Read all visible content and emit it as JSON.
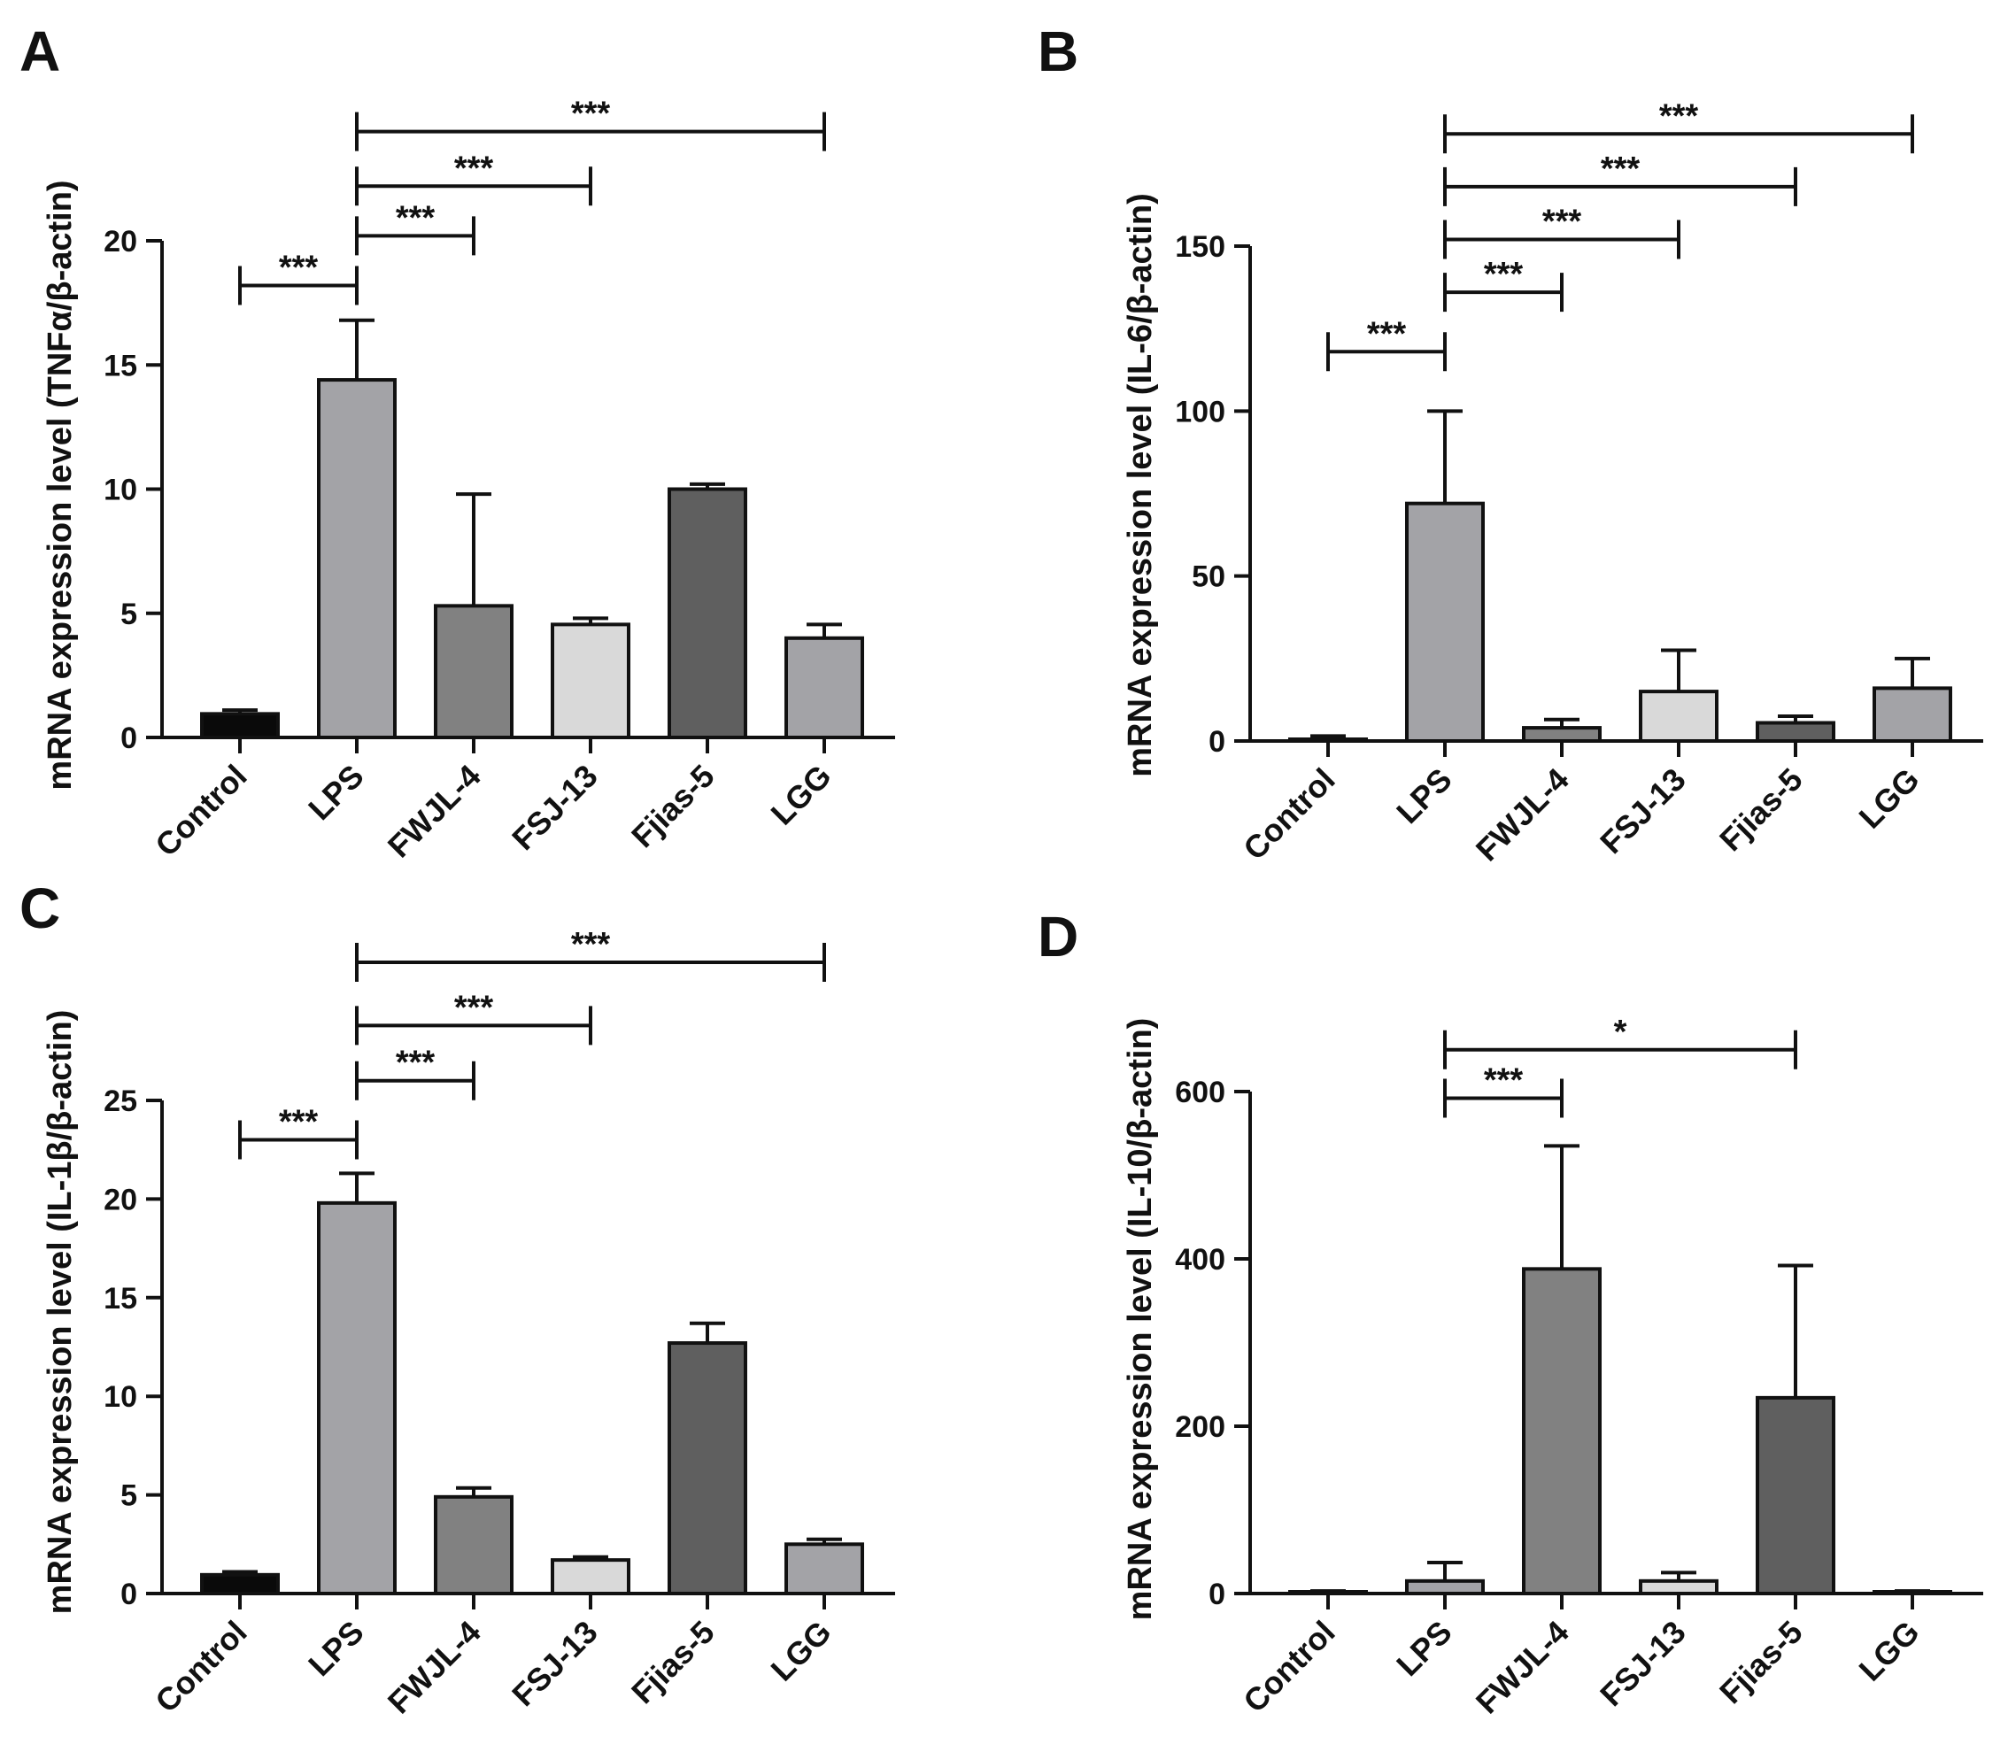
{
  "colors": {
    "Control": "#0a0a0a",
    "LPS": "#a3a3a7",
    "FWJL-4": "#818181",
    "FSJ-13": "#d9d9d9",
    "Fjias-5": "#5f5f5f",
    "LGG": "#a3a3a7"
  },
  "chart_data": [
    {
      "type": "bar",
      "panel": "A",
      "ylabel": "mRNA expression level (TNFα/β-actin)",
      "categories": [
        "Control",
        "LPS",
        "FWJL-4",
        "FSJ-13",
        "Fjias-5",
        "LGG"
      ],
      "values": [
        0.95,
        14.4,
        5.3,
        4.55,
        10.0,
        4.0
      ],
      "errors": [
        0.15,
        2.4,
        4.5,
        0.25,
        0.2,
        0.55
      ],
      "ylim": [
        0,
        20
      ],
      "yticks": [
        "0",
        "5",
        "10",
        "15",
        "20"
      ],
      "significance": [
        {
          "from": "Control",
          "to": "LPS",
          "label": "***",
          "level": 18.2
        },
        {
          "from": "LPS",
          "to": "FWJL-4",
          "label": "***",
          "level": 20.2
        },
        {
          "from": "LPS",
          "to": "FSJ-13",
          "label": "***",
          "level": 22.2
        },
        {
          "from": "LPS",
          "to": "LGG",
          "label": "***",
          "level": 24.4
        }
      ]
    },
    {
      "type": "bar",
      "panel": "B",
      "ylabel": "mRNA expression level (IL-6/β-actin)",
      "categories": [
        "Control",
        "LPS",
        "FWJL-4",
        "FSJ-13",
        "Fjias-5",
        "LGG"
      ],
      "values": [
        0.5,
        72,
        4,
        15,
        5.5,
        16
      ],
      "errors": [
        1,
        28,
        2.5,
        12.5,
        2,
        9
      ],
      "ylim": [
        0,
        150
      ],
      "yticks": [
        "0",
        "50",
        "100",
        "150"
      ],
      "significance": [
        {
          "from": "Control",
          "to": "LPS",
          "label": "***",
          "level": 118
        },
        {
          "from": "LPS",
          "to": "FWJL-4",
          "label": "***",
          "level": 136
        },
        {
          "from": "LPS",
          "to": "FSJ-13",
          "label": "***",
          "level": 152
        },
        {
          "from": "LPS",
          "to": "Fjias-5",
          "label": "***",
          "level": 168
        },
        {
          "from": "LPS",
          "to": "LGG",
          "label": "***",
          "level": 184
        }
      ]
    },
    {
      "type": "bar",
      "panel": "C",
      "ylabel": "mRNA expression level (IL-1β/β-actin)",
      "categories": [
        "Control",
        "LPS",
        "FWJL-4",
        "FSJ-13",
        "Fjias-5",
        "LGG"
      ],
      "values": [
        0.95,
        19.8,
        4.9,
        1.7,
        12.7,
        2.5
      ],
      "errors": [
        0.15,
        1.5,
        0.45,
        0.15,
        1.0,
        0.25
      ],
      "ylim": [
        0,
        25
      ],
      "yticks": [
        "0",
        "5",
        "10",
        "15",
        "20",
        "25"
      ],
      "significance": [
        {
          "from": "Control",
          "to": "LPS",
          "label": "***",
          "level": 23.0
        },
        {
          "from": "LPS",
          "to": "FWJL-4",
          "label": "***",
          "level": 26.0
        },
        {
          "from": "LPS",
          "to": "FSJ-13",
          "label": "***",
          "level": 28.8
        },
        {
          "from": "LPS",
          "to": "LGG",
          "label": "***",
          "level": 32.0
        }
      ]
    },
    {
      "type": "bar",
      "panel": "D",
      "ylabel": "mRNA expression level (IL-10/β-actin)",
      "categories": [
        "Control",
        "LPS",
        "FWJL-4",
        "FSJ-13",
        "Fjias-5",
        "LGG"
      ],
      "values": [
        1,
        15,
        388,
        15,
        234,
        1
      ],
      "errors": [
        2,
        22,
        147,
        10,
        158,
        2
      ],
      "ylim": [
        0,
        600
      ],
      "yticks": [
        "0",
        "200",
        "400",
        "600"
      ],
      "significance": [
        {
          "from": "LPS",
          "to": "FWJL-4",
          "label": "***",
          "level": 592
        },
        {
          "from": "LPS",
          "to": "Fjias-5",
          "label": "*",
          "level": 650
        }
      ]
    }
  ]
}
